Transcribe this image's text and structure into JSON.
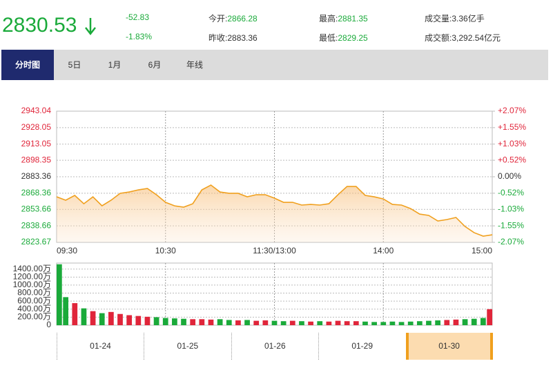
{
  "header": {
    "price": "2830.53",
    "change": "-52.83",
    "change_pct": "-1.83%",
    "open_label": "今开:",
    "open": "2866.28",
    "prev_close_label": "昨收:",
    "prev_close": "2883.36",
    "high_label": "最高:",
    "high": "2881.35",
    "low_label": "最低:",
    "low": "2829.25",
    "volume_label": "成交量:",
    "volume": "3.36亿手",
    "amount_label": "成交额:",
    "amount": "3,292.54亿元"
  },
  "tabs": [
    "分时图",
    "5日",
    "1月",
    "6月",
    "年线"
  ],
  "date_tabs": [
    "01-24",
    "01-25",
    "01-26",
    "01-29",
    "01-30"
  ],
  "chart_data": [
    {
      "type": "line",
      "base": 2883.36,
      "x": [
        0,
        5,
        10,
        15,
        20,
        25,
        30,
        35,
        40,
        45,
        50,
        55,
        60,
        65,
        70,
        75,
        80,
        85,
        90,
        95,
        100,
        105,
        110,
        115,
        120,
        125,
        130,
        135,
        140,
        145,
        150,
        155,
        160,
        165,
        170,
        175,
        180,
        185,
        190,
        195,
        200,
        205,
        210,
        215,
        220,
        225,
        230,
        235,
        240
      ],
      "values": [
        2865.1,
        2862.0,
        2866.4,
        2858.8,
        2865.1,
        2856.9,
        2862.0,
        2868.3,
        2869.5,
        2871.4,
        2872.7,
        2867.0,
        2860.1,
        2856.9,
        2855.7,
        2858.8,
        2871.4,
        2875.8,
        2869.5,
        2868.3,
        2868.3,
        2865.1,
        2867.0,
        2867.0,
        2863.9,
        2860.1,
        2860.1,
        2857.6,
        2858.2,
        2857.6,
        2858.8,
        2867.0,
        2874.5,
        2874.5,
        2866.4,
        2865.1,
        2863.2,
        2858.2,
        2857.6,
        2854.4,
        2849.4,
        2848.2,
        2843.1,
        2844.4,
        2846.3,
        2838.1,
        2832.5,
        2829.3,
        2830.53
      ],
      "color": "#f0a01e",
      "up_color": "#e0253a",
      "down_color": "#1aaa3a",
      "flat_color": "#333333",
      "xlim": [
        0,
        240
      ],
      "xticks": [
        {
          "value": 0,
          "label": "09:30"
        },
        {
          "value": 60,
          "label": "10:30"
        },
        {
          "value": 120,
          "label": "11:30/13:00"
        },
        {
          "value": 180,
          "label": "14:00"
        },
        {
          "value": 240,
          "label": "15:00"
        }
      ],
      "ylim": [
        2823.67,
        2943.04
      ],
      "yticks": [
        2943.04,
        2928.05,
        2913.05,
        2898.35,
        2883.36,
        2868.36,
        2853.66,
        2838.66,
        2823.67
      ],
      "y2lim": [
        -2.07,
        2.07
      ],
      "y2ticks": [
        {
          "value": 2.07,
          "label": "+2.07%"
        },
        {
          "value": 1.55,
          "label": "+1.55%"
        },
        {
          "value": 1.03,
          "label": "+1.03%"
        },
        {
          "value": 0.52,
          "label": "+0.52%"
        },
        {
          "value": 0,
          "label": "0.00%"
        },
        {
          "value": -0.52,
          "label": "-0.52%"
        },
        {
          "value": -1.03,
          "label": "-1.03%"
        },
        {
          "value": -1.55,
          "label": "-1.55%"
        },
        {
          "value": -2.07,
          "label": "-2.07%"
        }
      ],
      "grid": true
    },
    {
      "type": "bar",
      "values": [
        1520,
        700,
        550,
        420,
        350,
        300,
        330,
        280,
        250,
        230,
        210,
        200,
        180,
        170,
        160,
        150,
        150,
        140,
        150,
        130,
        120,
        130,
        110,
        120,
        110,
        100,
        110,
        100,
        90,
        100,
        90,
        110,
        100,
        100,
        90,
        80,
        80,
        90,
        80,
        90,
        100,
        110,
        120,
        130,
        140,
        150,
        160,
        180,
        400
      ],
      "ylim": [
        0,
        1550
      ],
      "yticks": [
        0,
        {
          "value": 200,
          "label": "200.00万"
        },
        {
          "value": 400,
          "label": "400.00万"
        },
        {
          "value": 600,
          "label": "600.00万"
        },
        {
          "value": 800,
          "label": "800.00万"
        },
        {
          "value": 1000,
          "label": "1000.00万"
        },
        {
          "value": 1200,
          "label": "1200.00万"
        },
        {
          "value": 1400,
          "label": "1400.00万"
        }
      ],
      "grid": true
    }
  ]
}
